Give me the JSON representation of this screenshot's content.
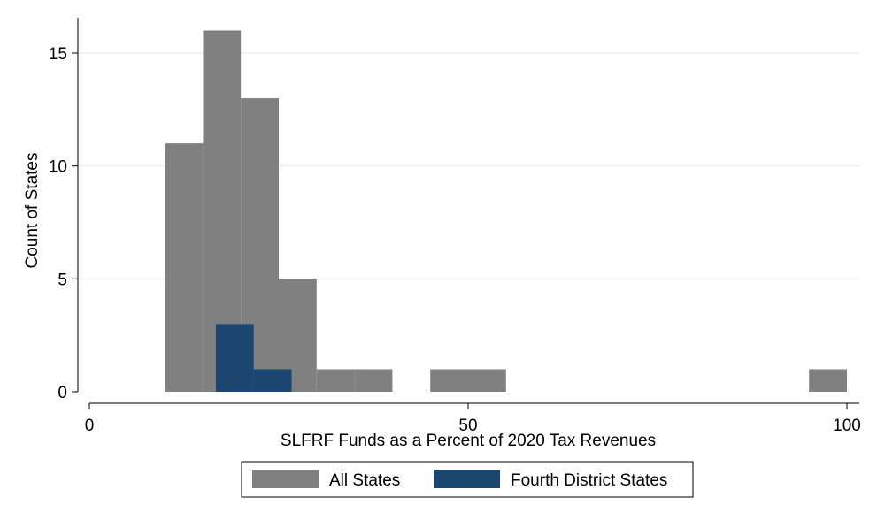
{
  "chart_data": {
    "type": "bar",
    "xlabel": "SLFRF Funds as a Percent of 2020 Tax Revenues",
    "ylabel": "Count of States",
    "xlim": [
      0,
      100
    ],
    "ylim": [
      0,
      16
    ],
    "x_ticks": [
      {
        "value": 0,
        "label": "0"
      },
      {
        "value": 50,
        "label": "50"
      },
      {
        "value": 100,
        "label": "100"
      }
    ],
    "y_ticks": [
      {
        "value": 0,
        "label": "0"
      },
      {
        "value": 5,
        "label": "5"
      },
      {
        "value": 10,
        "label": "10"
      },
      {
        "value": 15,
        "label": "15"
      }
    ],
    "grid": true,
    "legend_position": "bottom",
    "series": [
      {
        "name": "All States",
        "color": "#808080",
        "bins": [
          {
            "start": 10,
            "end": 15,
            "value": 11
          },
          {
            "start": 15,
            "end": 20,
            "value": 16
          },
          {
            "start": 20,
            "end": 25,
            "value": 13
          },
          {
            "start": 25,
            "end": 30,
            "value": 5
          },
          {
            "start": 30,
            "end": 35,
            "value": 1
          },
          {
            "start": 35,
            "end": 40,
            "value": 1
          },
          {
            "start": 45,
            "end": 50,
            "value": 1
          },
          {
            "start": 50,
            "end": 55,
            "value": 1
          },
          {
            "start": 95,
            "end": 100,
            "value": 1
          }
        ]
      },
      {
        "name": "Fourth District States",
        "color": "#1a4670",
        "bins": [
          {
            "start": 16.7,
            "end": 21.7,
            "value": 3
          },
          {
            "start": 21.7,
            "end": 26.7,
            "value": 1
          }
        ]
      }
    ]
  }
}
